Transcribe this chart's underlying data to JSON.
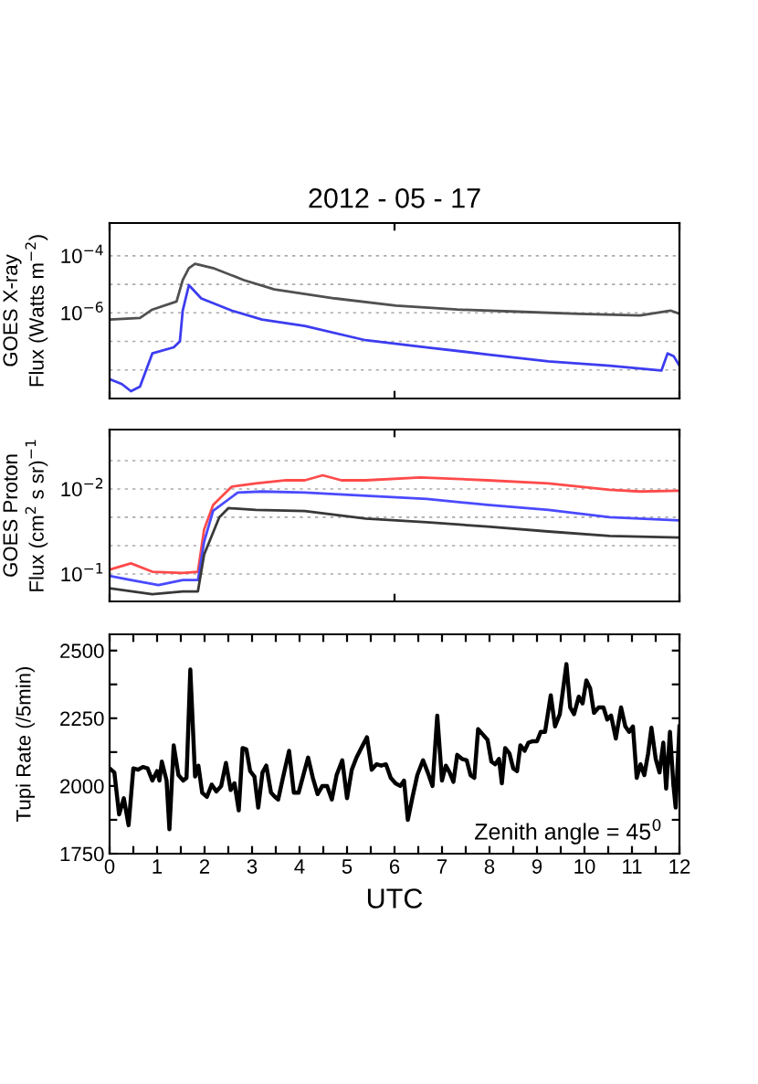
{
  "chart_data": [
    {
      "type": "line",
      "title": "2012 - 05 - 17",
      "ylabel": "GOES X-ray\nFlux (Watts m$^{−2}$)",
      "log": true,
      "grid": "y",
      "tick_labels": "y",
      "line_style": "solid",
      "xlim": [
        0,
        12
      ],
      "xticks": [
        {
          "value": 0,
          "label": null
        },
        {
          "value": 6,
          "label": null
        },
        {
          "value": 12,
          "label": null
        }
      ],
      "ylim": [
        1e-09,
        0.0014
      ],
      "yticks": [
        {
          "value": 1e-08,
          "label": null
        },
        {
          "value": 1e-07,
          "label": null
        },
        {
          "value": 1e-06,
          "label": "10$^{−6}$"
        },
        {
          "value": 1e-05,
          "label": null
        },
        {
          "value": 0.0001,
          "label": "10$^{−4}$"
        }
      ],
      "series": [
        {
          "color": "#505050",
          "x": [
            0,
            0.64,
            0.9,
            1.41,
            1.54,
            1.67,
            1.8,
            2.18,
            2.83,
            3.47,
            4.75,
            6.03,
            7.32,
            8.6,
            9.88,
            11.17,
            11.81,
            12
          ],
          "values": [
            5.8e-07,
            6.6e-07,
            1.3e-06,
            2.5e-06,
            1.4e-05,
            3.7e-05,
            5.2e-05,
            3.7e-05,
            1.4e-05,
            6.6e-06,
            3.2e-06,
            1.8e-06,
            1.3e-06,
            1.1e-06,
            9.3e-07,
            8.1e-07,
            1.2e-06,
            9.3e-07
          ]
        },
        {
          "color": "#3c3cf0",
          "x": [
            0,
            0.26,
            0.45,
            0.64,
            0.9,
            1.35,
            1.48,
            1.54,
            1.67,
            1.93,
            2.57,
            3.21,
            4.11,
            5.39,
            6.68,
            7.96,
            9.24,
            10.53,
            11.62,
            11.75,
            11.88,
            12
          ],
          "values": [
            4.8e-09,
            3.2e-09,
            1.8e-09,
            2.6e-09,
            3.8e-08,
            6.2e-08,
            1e-07,
            1.2e-06,
            9.3e-06,
            3.2e-06,
            1.2e-06,
            5.8e-07,
            3.5e-07,
            1.1e-07,
            6.2e-08,
            3.5e-08,
            2e-08,
            1.4e-08,
            9.5e-09,
            3.8e-08,
            3e-08,
            1.4e-08
          ]
        }
      ]
    },
    {
      "type": "line",
      "ylabel": "GOES Proton\nFlux (cm$^{2}$ s sr)$^{−1}$",
      "log": true,
      "grid": "y",
      "tick_labels": "y",
      "line_style": "solid",
      "xlim": [
        0,
        12
      ],
      "xticks": [
        {
          "value": 0,
          "label": null
        },
        {
          "value": 6,
          "label": null
        },
        {
          "value": 12,
          "label": null
        }
      ],
      "ylim": [
        0.21,
        0.002
      ],
      "yticks": [
        {
          "value": 0.00464,
          "label": null
        },
        {
          "value": 0.01,
          "label": "10$^{−2}$"
        },
        {
          "value": 0.0215,
          "label": null
        },
        {
          "value": 0.0464,
          "label": null
        },
        {
          "value": 0.1,
          "label": "10$^{−1}$"
        }
      ],
      "series": [
        {
          "color": "#ff4a4a",
          "x": [
            0,
            0.45,
            0.9,
            1.54,
            1.86,
            1.99,
            2.18,
            2.57,
            3.08,
            3.72,
            4.11,
            4.49,
            4.88,
            5.39,
            6.55,
            7.96,
            9.24,
            10.53,
            11.17,
            12
          ],
          "values": [
            0.089,
            0.075,
            0.094,
            0.097,
            0.094,
            0.03,
            0.0154,
            0.0094,
            0.0086,
            0.0079,
            0.0079,
            0.0069,
            0.0079,
            0.0079,
            0.0073,
            0.0079,
            0.0086,
            0.0102,
            0.0107,
            0.0105
          ]
        },
        {
          "color": "#4a4aff",
          "x": [
            0,
            0.45,
            1.03,
            1.54,
            1.86,
            1.99,
            2.18,
            2.7,
            3.21,
            4.11,
            5.39,
            6.68,
            7.96,
            9.24,
            10.53,
            12
          ],
          "values": [
            0.105,
            0.118,
            0.135,
            0.118,
            0.118,
            0.042,
            0.018,
            0.011,
            0.0107,
            0.011,
            0.012,
            0.0131,
            0.0154,
            0.0176,
            0.0215,
            0.0234
          ]
        },
        {
          "color": "#383838",
          "x": [
            0,
            0.9,
            1.54,
            1.86,
            1.99,
            2.31,
            2.5,
            3.08,
            4.11,
            5.39,
            6.68,
            7.96,
            9.24,
            10.53,
            12
          ],
          "values": [
            0.147,
            0.173,
            0.16,
            0.16,
            0.059,
            0.0215,
            0.0168,
            0.0176,
            0.0182,
            0.0223,
            0.0246,
            0.0277,
            0.0316,
            0.0356,
            0.0373
          ]
        }
      ]
    },
    {
      "type": "line",
      "ylabel": "Tupi Rate (/5min)",
      "xlabel": "UTC",
      "line_style": "solid",
      "annotations": [
        "Zenith angle = 45$^{0}$"
      ],
      "xlim": [
        0,
        12
      ],
      "xticks": [
        0,
        {
          "value": 0.5,
          "label": null
        },
        1,
        {
          "value": 1.5,
          "label": null
        },
        2,
        {
          "value": 2.5,
          "label": null
        },
        3,
        {
          "value": 3.5,
          "label": null
        },
        4,
        {
          "value": 4.5,
          "label": null
        },
        5,
        {
          "value": 5.5,
          "label": null
        },
        6,
        {
          "value": 6.5,
          "label": null
        },
        7,
        {
          "value": 7.5,
          "label": null
        },
        8,
        {
          "value": 8.5,
          "label": null
        },
        9,
        {
          "value": 9.5,
          "label": null
        },
        10,
        {
          "value": 10.5,
          "label": null
        },
        11,
        {
          "value": 11.5,
          "label": null
        },
        12
      ],
      "ylim": [
        1750,
        2560
      ],
      "yticks": [
        1750,
        {
          "value": 1875,
          "label": null
        },
        2000,
        {
          "value": 2125,
          "label": null
        },
        2250,
        {
          "value": 2375,
          "label": null
        },
        2500
      ],
      "series": [
        {
          "color": "#000000",
          "x": [
            0,
            0.1,
            0.2,
            0.3,
            0.4,
            0.5,
            0.6,
            0.7,
            0.8,
            0.9,
            1.0,
            1.05,
            1.1,
            1.2,
            1.26,
            1.35,
            1.45,
            1.55,
            1.62,
            1.7,
            1.8,
            1.87,
            1.95,
            2.05,
            2.15,
            2.25,
            2.35,
            2.45,
            2.55,
            2.63,
            2.72,
            2.8,
            2.88,
            2.96,
            3.05,
            3.13,
            3.22,
            3.3,
            3.4,
            3.48,
            3.55,
            3.65,
            3.78,
            3.88,
            3.98,
            4.08,
            4.18,
            4.28,
            4.38,
            4.48,
            4.58,
            4.68,
            4.78,
            4.9,
            5.0,
            5.1,
            5.2,
            5.3,
            5.42,
            5.52,
            5.62,
            5.72,
            5.82,
            5.92,
            6.02,
            6.12,
            6.2,
            6.28,
            6.38,
            6.48,
            6.6,
            6.7,
            6.8,
            6.9,
            7.0,
            7.08,
            7.16,
            7.24,
            7.32,
            7.42,
            7.52,
            7.6,
            7.68,
            7.76,
            7.86,
            7.96,
            8.04,
            8.12,
            8.2,
            8.26,
            8.33,
            8.42,
            8.5,
            8.58,
            8.65,
            8.74,
            8.82,
            8.9,
            9.0,
            9.08,
            9.17,
            9.29,
            9.38,
            9.48,
            9.62,
            9.7,
            9.78,
            9.88,
            9.96,
            10.04,
            10.12,
            10.2,
            10.3,
            10.4,
            10.48,
            10.56,
            10.66,
            10.77,
            10.86,
            10.94,
            11.02,
            11.1,
            11.18,
            11.26,
            11.34,
            11.41,
            11.5,
            11.58,
            11.66,
            11.72,
            11.8,
            11.87,
            11.92,
            12.0
          ],
          "values": [
            2065,
            2050,
            1895,
            1955,
            1855,
            2065,
            2060,
            2070,
            2065,
            2020,
            2055,
            2020,
            2090,
            2020,
            1840,
            2150,
            2040,
            2020,
            2030,
            2430,
            2035,
            2075,
            1975,
            1960,
            2005,
            1980,
            2000,
            2085,
            1985,
            2010,
            1910,
            2140,
            2135,
            2055,
            2035,
            1920,
            2050,
            2075,
            1975,
            1960,
            1950,
            2030,
            2130,
            1975,
            1975,
            2040,
            2105,
            2030,
            1970,
            2000,
            2000,
            1950,
            2040,
            2095,
            1955,
            2060,
            2105,
            2140,
            2180,
            2060,
            2080,
            2075,
            2080,
            2030,
            2010,
            2000,
            2020,
            1875,
            1960,
            2040,
            2095,
            2050,
            2000,
            2260,
            2020,
            2075,
            2050,
            2015,
            2115,
            2100,
            2095,
            2040,
            2030,
            2210,
            2190,
            2170,
            2090,
            2080,
            2100,
            2010,
            2140,
            2120,
            2065,
            2055,
            2150,
            2130,
            2160,
            2165,
            2165,
            2200,
            2200,
            2335,
            2220,
            2265,
            2450,
            2290,
            2265,
            2330,
            2305,
            2390,
            2360,
            2270,
            2290,
            2290,
            2245,
            2260,
            2175,
            2290,
            2220,
            2200,
            2220,
            2030,
            2080,
            2040,
            2120,
            2215,
            2100,
            2050,
            2160,
            1990,
            2200,
            2010,
            1920,
            2220
          ]
        }
      ]
    }
  ]
}
